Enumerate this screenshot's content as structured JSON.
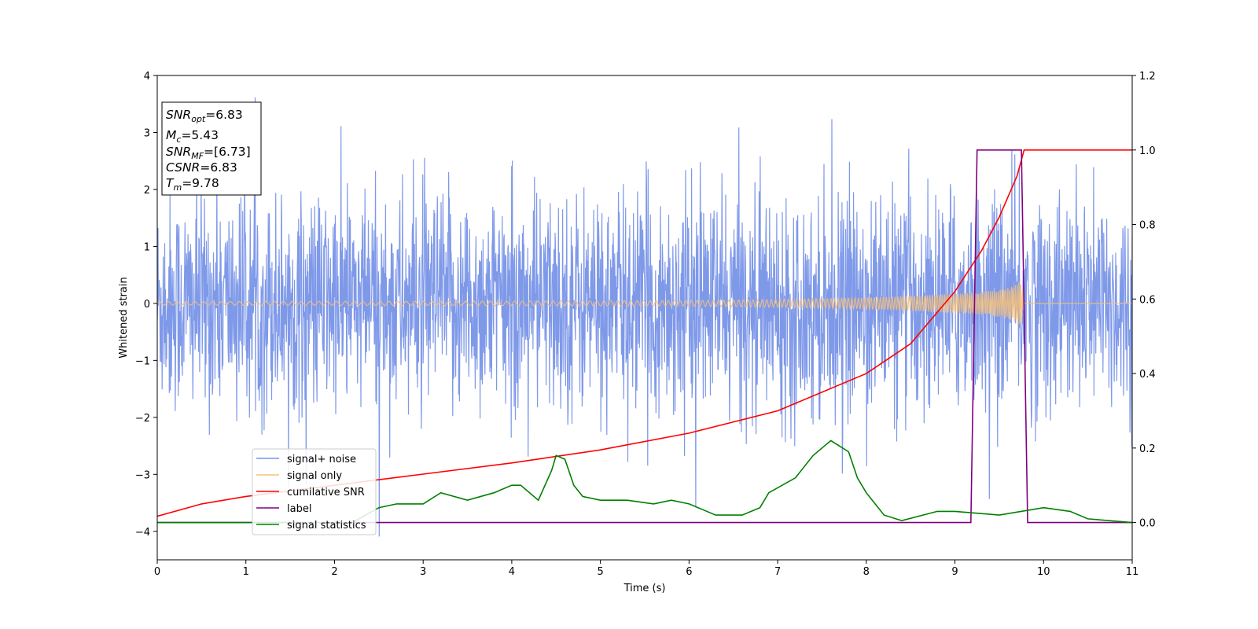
{
  "chart_data": {
    "type": "line",
    "xlabel": "Time (s)",
    "ylabel": "Whitened strain",
    "xlim": [
      0,
      11
    ],
    "ylim": [
      -4.5,
      4.0
    ],
    "y2lim": [
      -0.1,
      1.2
    ],
    "x_ticks": [
      "0",
      "1",
      "2",
      "3",
      "4",
      "5",
      "6",
      "7",
      "8",
      "9",
      "10",
      "11"
    ],
    "y_ticks": [
      "−4",
      "−3",
      "−2",
      "−1",
      "0",
      "1",
      "2",
      "3",
      "4"
    ],
    "y2_ticks": [
      "0.0",
      "0.2",
      "0.4",
      "0.6",
      "0.8",
      "1.0",
      "1.2"
    ],
    "grid": false,
    "legend_location": "lower-left",
    "info_box": {
      "snr_opt": "=6.83",
      "mc": "=5.43",
      "snr_mf": "=[6.73]",
      "csnr": "=6.83",
      "tm": "=9.78"
    },
    "series": [
      {
        "name": "signal+ noise",
        "color": "#7893e8",
        "axis": "left",
        "style": "noisy band",
        "typical_range": [
          -1.7,
          1.8
        ],
        "spike_max": 3.65,
        "spike_min": -4.15
      },
      {
        "name": "signal only",
        "color": "#f5c07a",
        "axis": "left",
        "style": "chirp",
        "x": [
          0,
          2,
          4,
          6,
          7,
          8,
          8.5,
          9,
          9.3,
          9.5,
          9.65,
          9.75,
          9.78,
          11
        ],
        "envelope": [
          0.03,
          0.035,
          0.04,
          0.05,
          0.07,
          0.1,
          0.13,
          0.17,
          0.2,
          0.24,
          0.3,
          0.42,
          0.0,
          0.0
        ]
      },
      {
        "name": "cumilative SNR",
        "color": "#ff0000",
        "axis": "right",
        "x": [
          0,
          0.5,
          1,
          2,
          3,
          4,
          5,
          6,
          7,
          8,
          8.5,
          9,
          9.3,
          9.5,
          9.7,
          9.78,
          11
        ],
        "y": [
          0.017,
          0.05,
          0.07,
          0.1,
          0.13,
          0.16,
          0.195,
          0.24,
          0.3,
          0.4,
          0.48,
          0.62,
          0.73,
          0.82,
          0.93,
          1.0,
          1.0
        ]
      },
      {
        "name": "label",
        "color": "#800080",
        "axis": "right",
        "x": [
          0,
          9.18,
          9.25,
          9.75,
          9.82,
          11
        ],
        "y": [
          0.0,
          0.0,
          1.0,
          1.0,
          0.0,
          0.0
        ]
      },
      {
        "name": "signal statistics",
        "color": "#008000",
        "axis": "right",
        "x": [
          0,
          2.2,
          2.5,
          2.7,
          3.0,
          3.2,
          3.5,
          3.8,
          4.0,
          4.1,
          4.3,
          4.45,
          4.5,
          4.6,
          4.7,
          4.8,
          5.0,
          5.3,
          5.6,
          5.8,
          6.0,
          6.3,
          6.6,
          6.8,
          6.9,
          7.2,
          7.4,
          7.5,
          7.6,
          7.8,
          7.9,
          8.0,
          8.2,
          8.4,
          8.8,
          9.0,
          9.5,
          10.0,
          10.3,
          10.5,
          11
        ],
        "y": [
          0.0,
          0.0,
          0.04,
          0.05,
          0.05,
          0.08,
          0.06,
          0.08,
          0.1,
          0.1,
          0.06,
          0.14,
          0.18,
          0.17,
          0.1,
          0.07,
          0.06,
          0.06,
          0.05,
          0.06,
          0.05,
          0.02,
          0.02,
          0.04,
          0.08,
          0.12,
          0.18,
          0.2,
          0.22,
          0.19,
          0.12,
          0.08,
          0.02,
          0.005,
          0.03,
          0.03,
          0.02,
          0.04,
          0.03,
          0.01,
          0.0
        ]
      }
    ]
  }
}
